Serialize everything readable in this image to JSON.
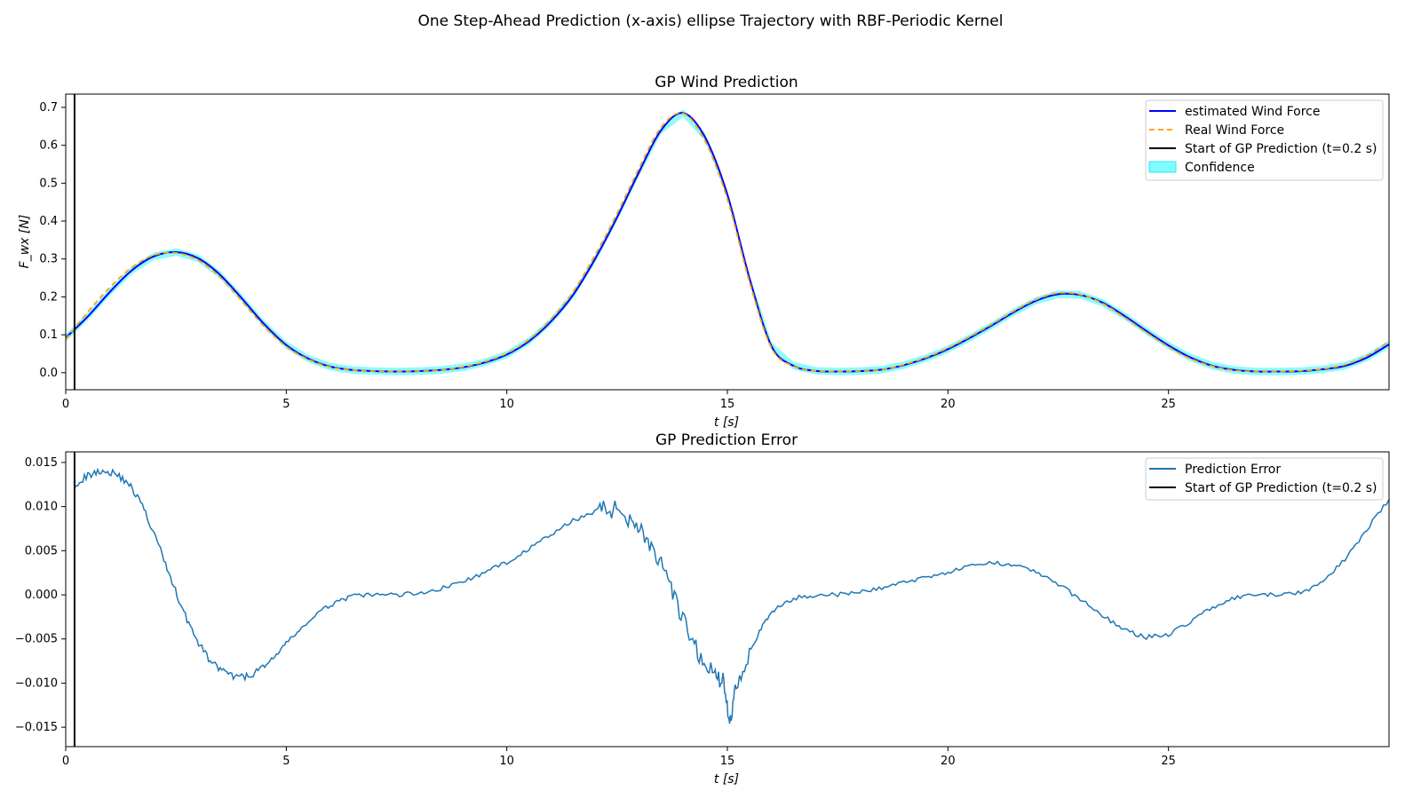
{
  "figure": {
    "title": "One Step-Ahead Prediction (x-axis) ellipse Trajectory with RBF-Periodic Kernel"
  },
  "colors": {
    "estimated": "#0000ff",
    "real": "#ffa500",
    "start": "#000000",
    "confidence": "#7ffcff",
    "error": "#1f77b4"
  },
  "chart_data": [
    {
      "type": "line",
      "title": "GP Wind Prediction",
      "xlabel": "t [s]",
      "ylabel": "F_wx [N]",
      "xlim": [
        0,
        30
      ],
      "ylim": [
        -0.045,
        0.735
      ],
      "xticks": [
        "0",
        "5",
        "10",
        "15",
        "20",
        "25"
      ],
      "xtick_values": [
        0,
        5,
        10,
        15,
        20,
        25
      ],
      "yticks": [
        "0.0",
        "0.1",
        "0.2",
        "0.3",
        "0.4",
        "0.5",
        "0.6",
        "0.7"
      ],
      "ytick_values": [
        0.0,
        0.1,
        0.2,
        0.3,
        0.4,
        0.5,
        0.6,
        0.7
      ],
      "grid": false,
      "legend_position": "top-right",
      "x": [
        0,
        0.5,
        1,
        1.5,
        2,
        2.5,
        3,
        3.5,
        4,
        4.5,
        5,
        5.5,
        6,
        6.5,
        7,
        7.5,
        8,
        8.5,
        9,
        9.5,
        10,
        10.5,
        11,
        11.5,
        12,
        12.5,
        13,
        13.5,
        14,
        14.5,
        15,
        15.5,
        16,
        16.5,
        17,
        17.5,
        18,
        18.5,
        19,
        19.5,
        20,
        20.5,
        21,
        21.5,
        22,
        22.5,
        23,
        23.5,
        24,
        24.5,
        25,
        25.5,
        26,
        26.5,
        27,
        27.5,
        28,
        28.5,
        29,
        29.5,
        30
      ],
      "series": [
        {
          "name": "estimated Wind Force",
          "style": "solid",
          "values": [
            0.092,
            0.148,
            0.213,
            0.27,
            0.307,
            0.318,
            0.302,
            0.258,
            0.195,
            0.128,
            0.073,
            0.037,
            0.016,
            0.007,
            0.004,
            0.003,
            0.004,
            0.007,
            0.014,
            0.027,
            0.048,
            0.083,
            0.135,
            0.205,
            0.3,
            0.41,
            0.53,
            0.64,
            0.685,
            0.62,
            0.47,
            0.25,
            0.07,
            0.018,
            0.005,
            0.003,
            0.004,
            0.008,
            0.02,
            0.038,
            0.062,
            0.092,
            0.125,
            0.16,
            0.19,
            0.207,
            0.205,
            0.185,
            0.15,
            0.11,
            0.072,
            0.04,
            0.018,
            0.007,
            0.003,
            0.003,
            0.004,
            0.009,
            0.018,
            0.04,
            0.075
          ]
        },
        {
          "name": "Real Wind Force",
          "style": "dashed",
          "values": [
            0.088,
            0.16,
            0.225,
            0.278,
            0.31,
            0.316,
            0.297,
            0.252,
            0.188,
            0.122,
            0.069,
            0.035,
            0.015,
            0.007,
            0.004,
            0.003,
            0.004,
            0.007,
            0.015,
            0.029,
            0.051,
            0.087,
            0.141,
            0.213,
            0.31,
            0.42,
            0.54,
            0.648,
            0.684,
            0.61,
            0.458,
            0.24,
            0.065,
            0.017,
            0.005,
            0.003,
            0.004,
            0.008,
            0.021,
            0.04,
            0.065,
            0.095,
            0.128,
            0.163,
            0.193,
            0.21,
            0.206,
            0.183,
            0.146,
            0.106,
            0.068,
            0.037,
            0.017,
            0.006,
            0.003,
            0.003,
            0.005,
            0.01,
            0.021,
            0.045,
            0.083
          ]
        }
      ],
      "vline": {
        "name": "Start of GP Prediction (t=0.2 s)",
        "x": 0.2
      },
      "confidence": {
        "name": "Confidence",
        "half_width": 0.01
      }
    },
    {
      "type": "line",
      "title": "GP Prediction Error",
      "xlabel": "t [s]",
      "ylabel": "",
      "xlim": [
        0,
        30
      ],
      "ylim": [
        -0.0172,
        0.0162
      ],
      "xticks": [
        "0",
        "5",
        "10",
        "15",
        "20",
        "25"
      ],
      "xtick_values": [
        0,
        5,
        10,
        15,
        20,
        25
      ],
      "yticks": [
        "0.015",
        "0.010",
        "0.005",
        "0.000",
        "−0.005",
        "−0.010",
        "−0.015"
      ],
      "ytick_values": [
        0.015,
        0.01,
        0.005,
        0.0,
        -0.005,
        -0.01,
        -0.015
      ],
      "grid": false,
      "legend_position": "top-right",
      "x": [
        0.2,
        0.5,
        0.8,
        1.1,
        1.4,
        1.7,
        2.0,
        2.3,
        2.6,
        2.9,
        3.2,
        3.5,
        3.8,
        4.1,
        4.4,
        4.7,
        5.0,
        5.4,
        5.8,
        6.2,
        6.6,
        7.0,
        7.5,
        8.0,
        8.5,
        9.0,
        9.5,
        10.0,
        10.5,
        11.0,
        11.5,
        12.0,
        12.3,
        12.6,
        12.9,
        13.2,
        13.5,
        13.8,
        14.1,
        14.4,
        14.7,
        14.9,
        15.05,
        15.2,
        15.5,
        15.8,
        16.1,
        16.5,
        17.0,
        17.5,
        18.0,
        18.5,
        19.0,
        19.5,
        20.0,
        20.5,
        21.0,
        21.5,
        22.0,
        22.5,
        23.0,
        23.5,
        24.0,
        24.5,
        25.0,
        25.5,
        26.0,
        26.5,
        27.0,
        27.5,
        28.0,
        28.5,
        29.0,
        29.5,
        30.0
      ],
      "series": [
        {
          "name": "Prediction Error",
          "style": "solid",
          "values": [
            0.0125,
            0.0135,
            0.0141,
            0.0138,
            0.0128,
            0.0105,
            0.007,
            0.003,
            -0.001,
            -0.0045,
            -0.007,
            -0.0085,
            -0.0093,
            -0.0093,
            -0.0085,
            -0.0072,
            -0.0055,
            -0.0035,
            -0.0018,
            -0.0006,
            -0.0001,
            0.0,
            0.0,
            0.0002,
            0.0007,
            0.0015,
            0.0025,
            0.0037,
            0.0052,
            0.0068,
            0.0084,
            0.0095,
            0.0098,
            0.0094,
            0.0083,
            0.0062,
            0.0032,
            -0.0005,
            -0.0042,
            -0.0072,
            -0.009,
            -0.0098,
            -0.0145,
            -0.01,
            -0.0065,
            -0.0035,
            -0.0015,
            -0.0004,
            0.0,
            0.0,
            0.0003,
            0.0008,
            0.0014,
            0.002,
            0.0026,
            0.0032,
            0.0036,
            0.0035,
            0.0026,
            0.0012,
            -0.0005,
            -0.0023,
            -0.004,
            -0.0048,
            -0.0045,
            -0.003,
            -0.0014,
            -0.0004,
            0.0,
            0.0,
            0.0002,
            0.0015,
            0.004,
            0.0075,
            0.0108
          ]
        }
      ],
      "vline": {
        "name": "Start of GP Prediction (t=0.2 s)",
        "x": 0.2
      }
    }
  ]
}
